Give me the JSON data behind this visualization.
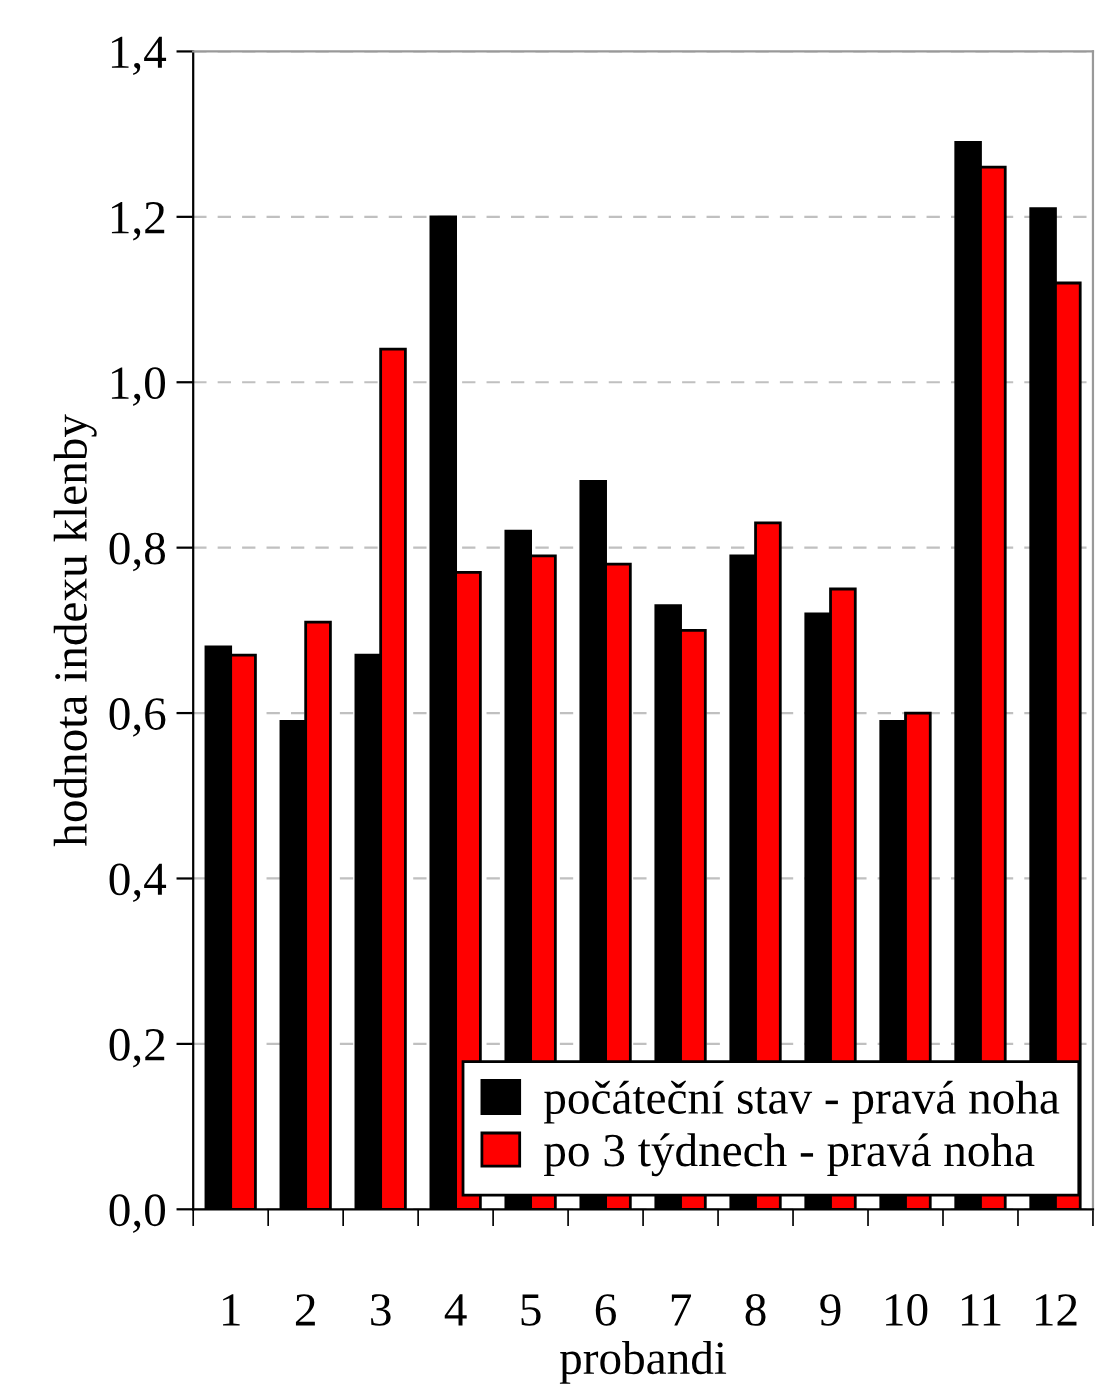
{
  "chart_data": {
    "type": "bar",
    "xlabel": "probandi",
    "ylabel": "hodnota indexu klenby",
    "categories": [
      "1",
      "2",
      "3",
      "4",
      "5",
      "6",
      "7",
      "8",
      "9",
      "10",
      "11",
      "12"
    ],
    "series": [
      {
        "name": "počáteční stav - pravá noha",
        "color": "#000000",
        "values": [
          0.68,
          0.59,
          0.67,
          1.2,
          0.82,
          0.88,
          0.73,
          0.79,
          0.72,
          0.59,
          1.29,
          1.21
        ]
      },
      {
        "name": "po 3 týdnech - pravá noha",
        "color": "#ff0000",
        "values": [
          0.67,
          0.71,
          1.04,
          0.77,
          0.79,
          0.78,
          0.7,
          0.83,
          0.75,
          0.6,
          1.26,
          1.12
        ]
      }
    ],
    "ylim": [
      0,
      1.4
    ],
    "yticks": [
      {
        "value": 0,
        "label": "0,0"
      },
      {
        "value": 0.2,
        "label": "0,2"
      },
      {
        "value": 0.4,
        "label": "0,4"
      },
      {
        "value": 0.6,
        "label": "0,6"
      },
      {
        "value": 0.8,
        "label": "0,8"
      },
      {
        "value": 1.0,
        "label": "1,0"
      },
      {
        "value": 1.2,
        "label": "1,2"
      },
      {
        "value": 1.4,
        "label": "1,4"
      }
    ],
    "grid": "y",
    "legend": "bottom right"
  }
}
